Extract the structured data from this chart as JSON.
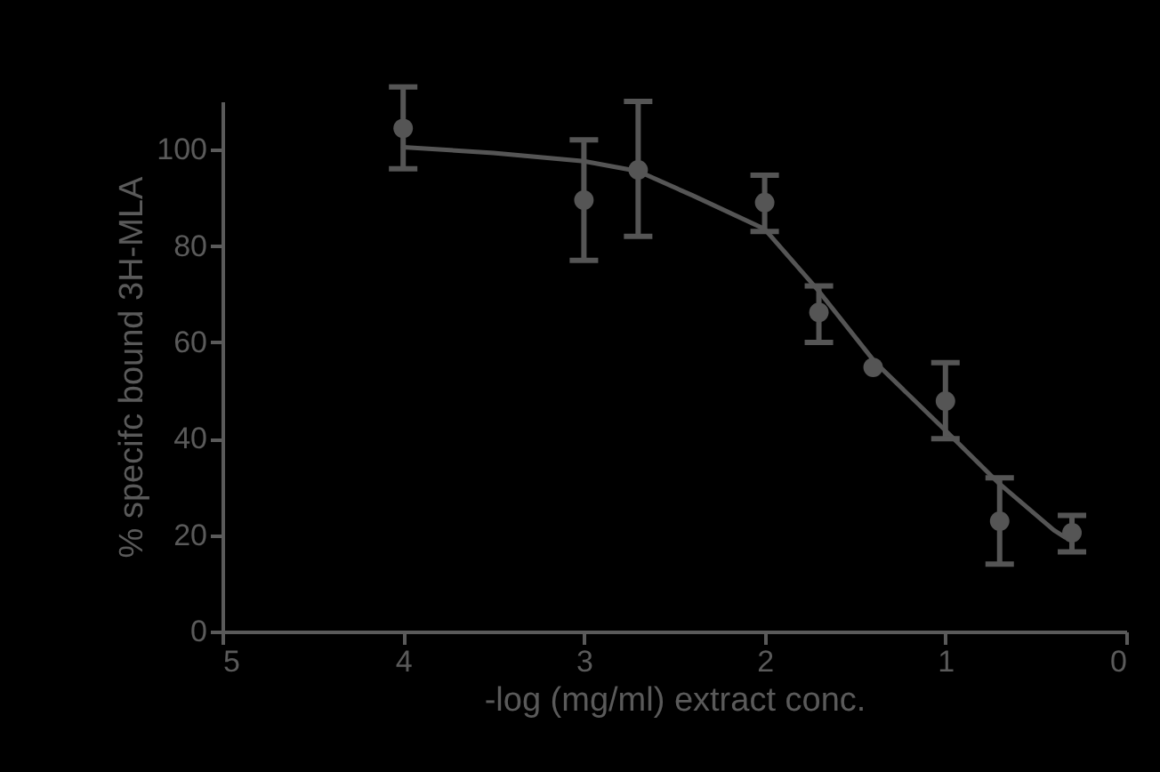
{
  "chart_data": {
    "type": "scatter",
    "xlabel": "-log (mg/ml) extract conc.",
    "ylabel": "% specifc bound 3H-MLA",
    "xlim": [
      5,
      0
    ],
    "xticks": [
      5,
      4,
      3,
      2,
      1,
      0
    ],
    "ylim": [
      0,
      110
    ],
    "yticks": [
      0,
      20,
      40,
      60,
      80,
      100
    ],
    "grid": false,
    "series": [
      {
        "type": "line",
        "marker": "none",
        "color": "#555555",
        "x": [
          4,
          3.5,
          3,
          2.7,
          2.4,
          2,
          1.7,
          1.39,
          1,
          0.7,
          0.4,
          0.34
        ],
        "values": [
          100.5,
          99.3,
          97.6,
          95.5,
          90.5,
          83.5,
          70.6,
          55.9,
          41.7,
          30.6,
          21,
          19.6
        ]
      },
      {
        "marker": "circle",
        "color": "#555555",
        "x": [
          4,
          3,
          2.7,
          2,
          1.7,
          1.4,
          1,
          0.7,
          0.3
        ],
        "values": [
          104.4,
          89.5,
          95.8,
          89,
          66.2,
          54.8,
          47.8,
          22.9,
          20.5
        ],
        "errors": [
          [
            96,
            113
          ],
          [
            77,
            102
          ],
          [
            82,
            110
          ],
          [
            83,
            94.7
          ],
          [
            60,
            71.7
          ],
          null,
          [
            40,
            55.8
          ],
          [
            14,
            31.9
          ],
          [
            16.5,
            24.1
          ]
        ]
      }
    ]
  }
}
